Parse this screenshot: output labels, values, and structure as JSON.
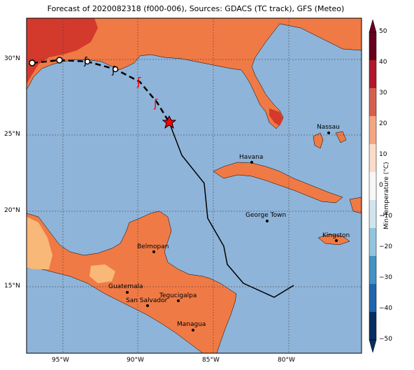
{
  "title": "Forecast of 2020082318 (f000-006), Sources: GDACS (TC track), GFS (Meteo)",
  "map": {
    "x_ticks": [
      "95°W",
      "90°W",
      "85°W",
      "80°W"
    ],
    "y_ticks": [
      "30°N",
      "25°N",
      "20°N",
      "15°N"
    ]
  },
  "cities": [
    {
      "name": "Havana"
    },
    {
      "name": "Nassau"
    },
    {
      "name": "George Town"
    },
    {
      "name": "Kingston"
    },
    {
      "name": "Belmopan"
    },
    {
      "name": "Guatemala"
    },
    {
      "name": "Tegucigalpa"
    },
    {
      "name": "San Salvador"
    },
    {
      "name": "Managua"
    }
  ],
  "colorbar": {
    "label": "Min Temperature (°C)",
    "ticks": [
      "50",
      "40",
      "30",
      "20",
      "10",
      "0",
      "−10",
      "−20",
      "−30",
      "−40",
      "−50"
    ],
    "colors": [
      "#67001f",
      "#b2182b",
      "#d6604d",
      "#f4a582",
      "#fddbc7",
      "#f7f7f7",
      "#d1e5f0",
      "#92c5de",
      "#4393c3",
      "#2166ac",
      "#053061"
    ]
  },
  "colors": {
    "ocean": "#8fb4d9",
    "land_warm": "#f07a45",
    "land_hot": "#d43a2c",
    "land_cool": "#f8b878",
    "track_color": "#000000",
    "storm_symbol": "#ff0000"
  }
}
